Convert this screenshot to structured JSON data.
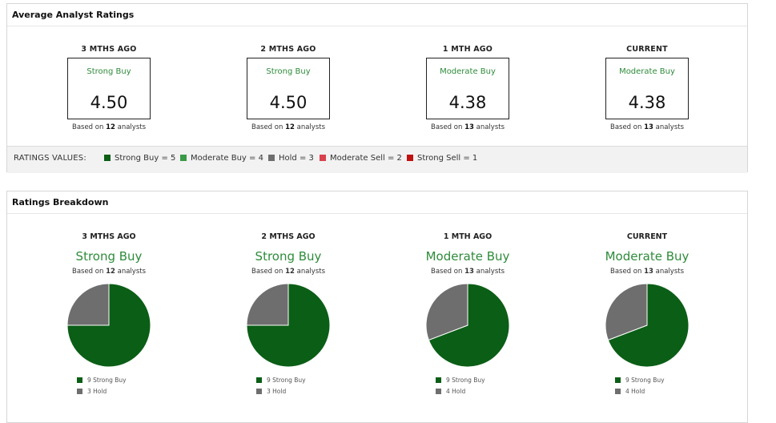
{
  "colors": {
    "strong_buy": "#0b5e16",
    "moderate_buy": "#3a9a48",
    "hold": "#6e6e6e",
    "moderate_sell": "#d9414e",
    "strong_sell": "#c01010",
    "label_green": "#2e8b3a"
  },
  "average_ratings": {
    "title": "Average Analyst Ratings",
    "columns": [
      {
        "period": "3 MTHS AGO",
        "label": "Strong Buy",
        "value": "4.50",
        "based_prefix": "Based on ",
        "analysts": "12",
        "based_suffix": " analysts"
      },
      {
        "period": "2 MTHS AGO",
        "label": "Strong Buy",
        "value": "4.50",
        "based_prefix": "Based on ",
        "analysts": "12",
        "based_suffix": " analysts"
      },
      {
        "period": "1 MTH AGO",
        "label": "Moderate Buy",
        "value": "4.38",
        "based_prefix": "Based on ",
        "analysts": "13",
        "based_suffix": " analysts"
      },
      {
        "period": "CURRENT",
        "label": "Moderate Buy",
        "value": "4.38",
        "based_prefix": "Based on ",
        "analysts": "13",
        "based_suffix": " analysts"
      }
    ],
    "legend_title": "RATINGS VALUES:",
    "legend": [
      {
        "label": "Strong Buy = 5"
      },
      {
        "label": "Moderate Buy = 4"
      },
      {
        "label": "Hold = 3"
      },
      {
        "label": "Moderate Sell = 2"
      },
      {
        "label": "Strong Sell = 1"
      }
    ]
  },
  "breakdown": {
    "title": "Ratings Breakdown",
    "columns": [
      {
        "period": "3 MTHS AGO",
        "label": "Strong Buy",
        "based_prefix": "Based on ",
        "analysts": "12",
        "based_suffix": " analysts",
        "legend": [
          "9 Strong Buy",
          "3 Hold"
        ]
      },
      {
        "period": "2 MTHS AGO",
        "label": "Strong Buy",
        "based_prefix": "Based on ",
        "analysts": "12",
        "based_suffix": " analysts",
        "legend": [
          "9 Strong Buy",
          "3 Hold"
        ]
      },
      {
        "period": "1 MTH AGO",
        "label": "Moderate Buy",
        "based_prefix": "Based on ",
        "analysts": "13",
        "based_suffix": " analysts",
        "legend": [
          "9 Strong Buy",
          "4 Hold"
        ]
      },
      {
        "period": "CURRENT",
        "label": "Moderate Buy",
        "based_prefix": "Based on ",
        "analysts": "13",
        "based_suffix": " analysts",
        "legend": [
          "9 Strong Buy",
          "4 Hold"
        ]
      }
    ]
  },
  "chart_data": [
    {
      "type": "pie",
      "title": "",
      "categories": [
        "Strong Buy",
        "Hold"
      ],
      "values": [
        9,
        3
      ]
    },
    {
      "type": "pie",
      "title": "",
      "categories": [
        "Strong Buy",
        "Hold"
      ],
      "values": [
        9,
        3
      ]
    },
    {
      "type": "pie",
      "title": "",
      "categories": [
        "Strong Buy",
        "Hold"
      ],
      "values": [
        9,
        4
      ]
    },
    {
      "type": "pie",
      "title": "",
      "categories": [
        "Strong Buy",
        "Hold"
      ],
      "values": [
        9,
        4
      ]
    }
  ]
}
